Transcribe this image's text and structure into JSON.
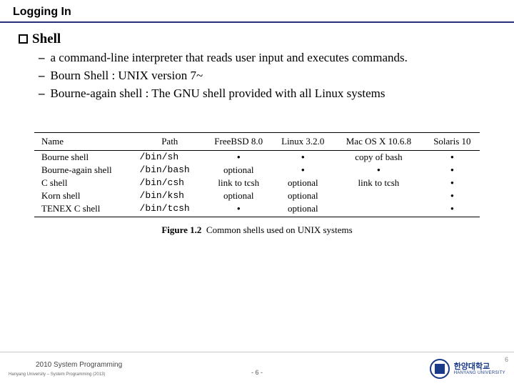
{
  "title": "Logging In",
  "heading": "Shell",
  "bullets": [
    "a command-line interpreter that reads user input and executes commands.",
    "Bourn Shell : UNIX version 7~",
    "Bourne-again shell : The GNU shell provided with all Linux systems"
  ],
  "table": {
    "columns": [
      "Name",
      "Path",
      "FreeBSD 8.0",
      "Linux 3.2.0",
      "Mac OS X 10.6.8",
      "Solaris 10"
    ],
    "rows": [
      [
        "Bourne shell",
        "/bin/sh",
        "•",
        "•",
        "copy of bash",
        "•"
      ],
      [
        "Bourne-again shell",
        "/bin/bash",
        "optional",
        "•",
        "•",
        "•"
      ],
      [
        "C shell",
        "/bin/csh",
        "link to tcsh",
        "optional",
        "link to tcsh",
        "•"
      ],
      [
        "Korn shell",
        "/bin/ksh",
        "optional",
        "optional",
        "",
        "•"
      ],
      [
        "TENEX C shell",
        "/bin/tcsh",
        "•",
        "optional",
        "",
        "•"
      ]
    ],
    "caption_label": "Figure 1.2",
    "caption_text": "Common shells used on UNIX systems"
  },
  "footer": {
    "course": "2010 System Programming",
    "sub": "Hanyang University – System Programming  (2013)",
    "page": "- 6 -",
    "page_right": "6",
    "uni_ko": "한양대학교",
    "uni_en": "HANYANG UNIVERSITY"
  }
}
